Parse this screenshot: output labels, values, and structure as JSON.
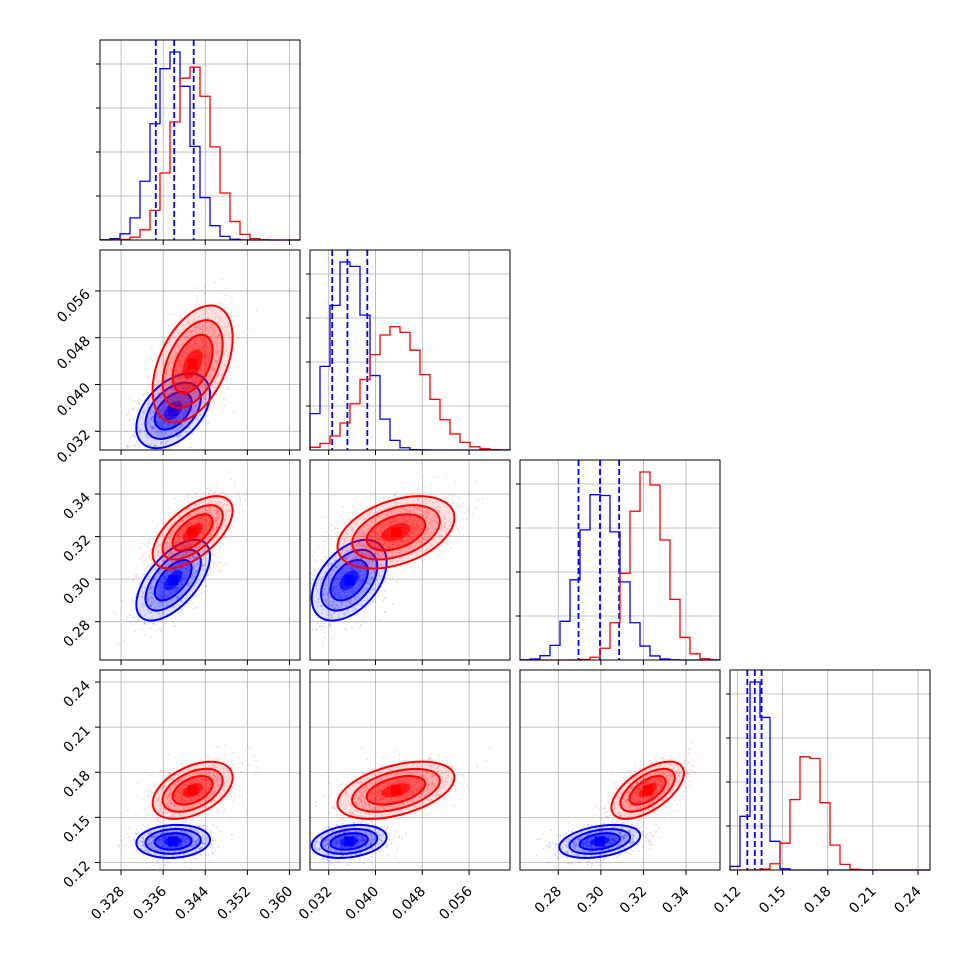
{
  "chart_data": {
    "type": "corner",
    "colors": {
      "blue": "#0000ff",
      "red": "#ff0000",
      "grid": "#b0b0b0"
    },
    "grid": true,
    "parameters": [
      {
        "range": [
          0.324,
          0.362
        ],
        "ticks": [
          "0.328",
          "0.336",
          "0.344",
          "0.352",
          "0.360"
        ]
      },
      {
        "range": [
          0.0288,
          0.063
        ],
        "ticks": [
          "0.032",
          "0.040",
          "0.048",
          "0.056"
        ]
      },
      {
        "range": [
          0.262,
          0.356
        ],
        "ticks": [
          "0.28",
          "0.30",
          "0.32",
          "0.34"
        ]
      },
      {
        "range": [
          0.115,
          0.248
        ],
        "ticks": [
          "0.12",
          "0.15",
          "0.18",
          "0.21",
          "0.24"
        ]
      }
    ],
    "series": [
      {
        "color": "blue",
        "mean": [
          0.3379,
          0.0355,
          0.2995,
          0.134
        ],
        "std": [
          0.0035,
          0.0032,
          0.0095,
          0.0055
        ],
        "quantiles": [
          [
            0.3346,
            0.3381,
            0.3418
          ],
          [
            0.0326,
            0.0352,
            0.0386
          ],
          [
            0.2895,
            0.2996,
            0.3086
          ],
          [
            0.1265,
            0.1315,
            0.136
          ]
        ]
      },
      {
        "color": "red",
        "mean": [
          0.3416,
          0.0435,
          0.322,
          0.168
        ],
        "std": [
          0.0038,
          0.005,
          0.0085,
          0.0095
        ]
      }
    ],
    "correlations": [
      {
        "pair": [
          1,
          0
        ],
        "blue": 0.45,
        "red": 0.45
      },
      {
        "pair": [
          2,
          0
        ],
        "blue": 0.6,
        "red": 0.6
      },
      {
        "pair": [
          2,
          1
        ],
        "blue": 0.45,
        "red": 0.4
      },
      {
        "pair": [
          3,
          0
        ],
        "blue": 0.1,
        "red": 0.45
      },
      {
        "pair": [
          3,
          1
        ],
        "blue": 0.25,
        "red": 0.45
      },
      {
        "pair": [
          3,
          2
        ],
        "blue": 0.35,
        "red": 0.6
      }
    ]
  }
}
